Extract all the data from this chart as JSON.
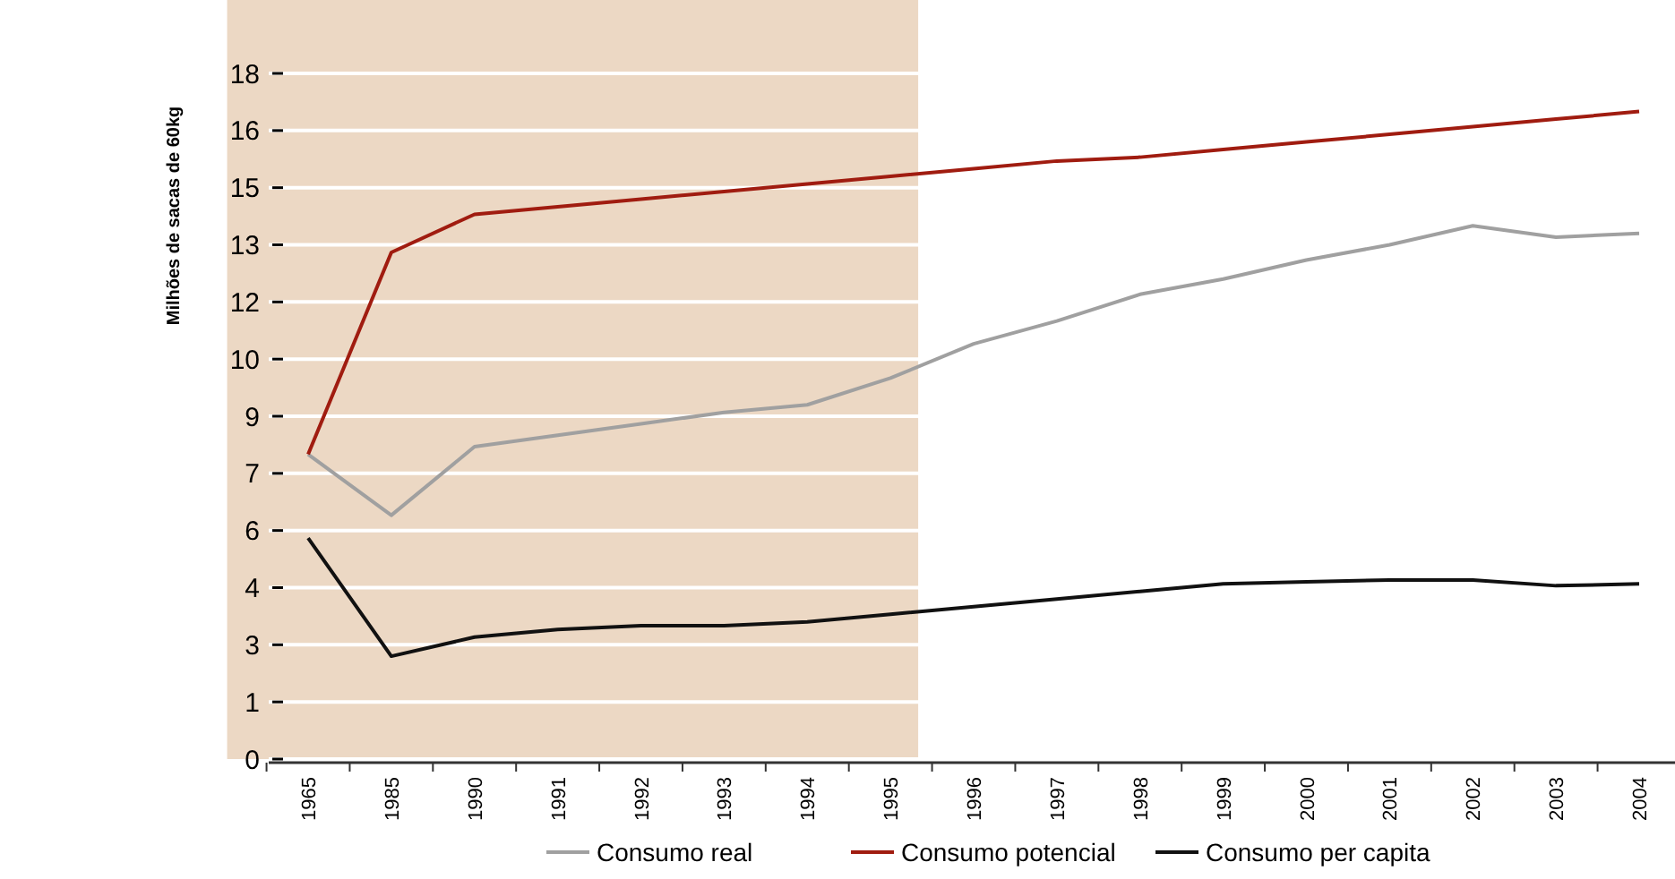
{
  "chart_data": {
    "type": "line",
    "ylabel": "Milhões de sacas de 60kg",
    "categories": [
      "1965",
      "1985",
      "1990",
      "1991",
      "1992",
      "1993",
      "1994",
      "1995",
      "1996",
      "1997",
      "1998",
      "1999",
      "2000",
      "2001",
      "2002",
      "2003",
      "2004"
    ],
    "series": [
      {
        "name": "Consumo real",
        "color": "#a0a0a0",
        "values": [
          8.0,
          6.4,
          8.2,
          8.5,
          8.8,
          9.1,
          9.3,
          10.0,
          10.9,
          11.5,
          12.2,
          12.6,
          13.1,
          13.5,
          14.0,
          13.7,
          13.8
        ]
      },
      {
        "name": "Consumo potencial",
        "color": "#a01c10",
        "values": [
          8.0,
          13.3,
          14.3,
          14.5,
          14.7,
          14.9,
          15.1,
          15.3,
          15.5,
          15.7,
          15.8,
          16.0,
          16.2,
          16.4,
          16.6,
          16.8,
          17.0
        ]
      },
      {
        "name": "Consumo per capita",
        "color": "#111111",
        "values": [
          5.8,
          2.7,
          3.2,
          3.4,
          3.5,
          3.5,
          3.6,
          3.8,
          4.0,
          4.2,
          4.4,
          4.6,
          4.65,
          4.7,
          4.7,
          4.55,
          4.6
        ]
      }
    ],
    "ylim": [
      0,
      18
    ],
    "yticks": [
      0,
      {
        "value": 1.5,
        "label": "1"
      },
      3,
      {
        "value": 4.5,
        "label": "4"
      },
      6,
      {
        "value": 7.5,
        "label": "7"
      },
      9,
      {
        "value": 10.5,
        "label": "10"
      },
      12,
      {
        "value": 13.5,
        "label": "13"
      },
      15,
      {
        "value": 16.5,
        "label": "16"
      },
      18
    ],
    "bands": [
      {
        "axis": "x",
        "from": "1965",
        "to": "1995",
        "color": "#ecd8c4"
      }
    ],
    "grid": "y",
    "legend": "bottom",
    "marker": "none",
    "line_style": "solid"
  }
}
